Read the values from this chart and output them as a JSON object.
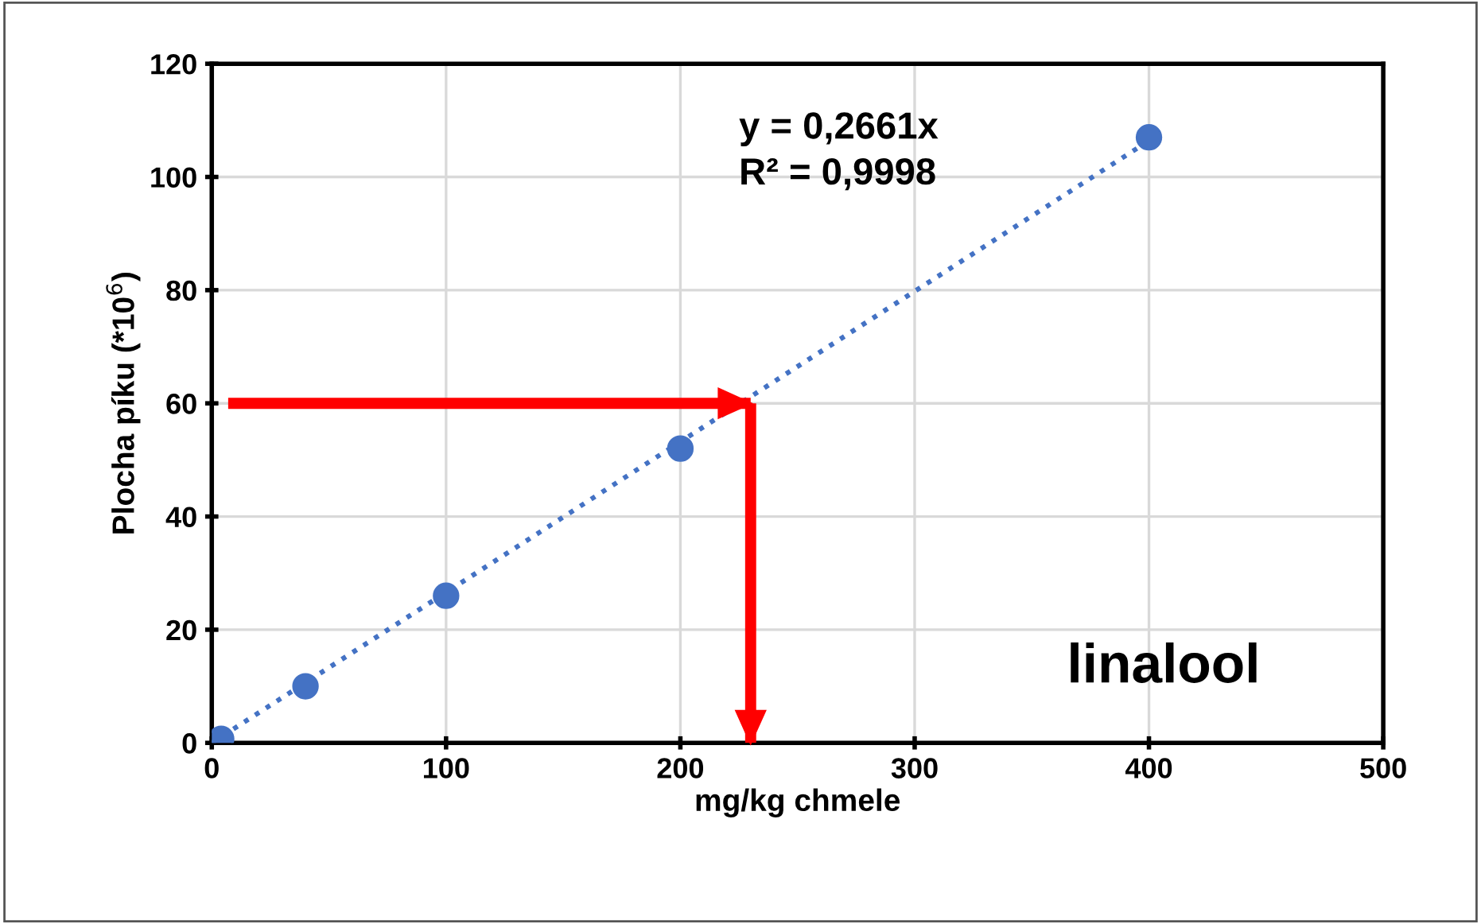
{
  "chart_data": {
    "type": "scatter",
    "xlabel": "mg/kg chmele",
    "ylabel": "Plocha píku (*10$^{6}$)",
    "xlim": [
      0,
      500
    ],
    "ylim": [
      0,
      120
    ],
    "xticks": [
      0,
      100,
      200,
      300,
      400,
      500
    ],
    "yticks": [
      0,
      20,
      40,
      60,
      80,
      100,
      120
    ],
    "grid": true,
    "marker": "circle",
    "series": [
      {
        "color": "#4472c4",
        "x": [
          4,
          40,
          100,
          200,
          400
        ],
        "values": [
          0.7,
          10,
          26,
          52,
          107
        ]
      },
      {
        "type": "line",
        "color": "#4472c4",
        "line_style": "dotted",
        "marker": "none",
        "x": [
          0,
          400
        ],
        "values": [
          0,
          106.4
        ]
      },
      {
        "type": "line",
        "marker": "none",
        "color": "#ff0000",
        "x": [
          7,
          230
        ],
        "values": [
          60,
          60
        ]
      },
      {
        "type": "line",
        "marker": "none",
        "color": "#ff0000",
        "x": [
          230,
          230
        ],
        "values": [
          60,
          0
        ]
      }
    ],
    "annotations": [
      "y = 0,2661x\nR² = 0,9998",
      "linalool"
    ]
  }
}
